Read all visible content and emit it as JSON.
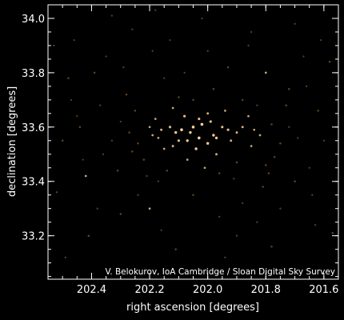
{
  "chart_data": {
    "type": "scatter",
    "title": "",
    "xlabel": "right ascension [degrees]",
    "ylabel": "declination [degrees]",
    "xlim": [
      202.55,
      201.55
    ],
    "ylim": [
      33.04,
      34.05
    ],
    "x_inverted": true,
    "xticks": [
      202.4,
      202.2,
      202.0,
      201.8,
      201.6
    ],
    "xtick_labels": [
      "202.4",
      "202.2",
      "202.0",
      "201.8",
      "201.6"
    ],
    "yticks": [
      33.2,
      33.4,
      33.6,
      33.8,
      34.0
    ],
    "ytick_labels": [
      "33.2",
      "33.4",
      "33.6",
      "33.8",
      "34.0"
    ],
    "grid": false,
    "credit": "V. Belokurov, IoA Cambridge / Sloan Digital Sky Survey",
    "colors": {
      "background": "#000000",
      "axes": "#ffffff",
      "stars_bright": "#ffd39a",
      "stars_dim": "#8a5a2a"
    },
    "series": [
      {
        "points": [
          [
            202.06,
            33.58,
            0.9
          ],
          [
            202.02,
            33.61,
            1.0
          ],
          [
            201.98,
            33.57,
            0.9
          ],
          [
            202.1,
            33.55,
            0.8
          ],
          [
            201.95,
            33.6,
            0.8
          ],
          [
            202.04,
            33.52,
            0.9
          ],
          [
            201.92,
            33.55,
            0.7
          ],
          [
            202.13,
            33.6,
            0.8
          ],
          [
            202.0,
            33.65,
            0.7
          ],
          [
            201.88,
            33.6,
            0.7
          ],
          [
            202.15,
            33.52,
            0.6
          ],
          [
            202.08,
            33.64,
            0.8
          ],
          [
            201.97,
            33.5,
            0.7
          ],
          [
            202.11,
            33.58,
            0.9
          ],
          [
            202.03,
            33.56,
            1.0
          ],
          [
            201.99,
            33.62,
            0.8
          ],
          [
            202.17,
            33.56,
            0.6
          ],
          [
            201.85,
            33.53,
            0.6
          ],
          [
            202.2,
            33.6,
            0.6
          ],
          [
            201.82,
            33.57,
            0.6
          ],
          [
            202.24,
            33.54,
            0.5
          ],
          [
            201.78,
            33.61,
            0.5
          ],
          [
            202.07,
            33.48,
            0.6
          ],
          [
            201.94,
            33.66,
            0.6
          ],
          [
            202.12,
            33.67,
            0.6
          ],
          [
            201.9,
            33.47,
            0.5
          ],
          [
            202.18,
            33.63,
            0.6
          ],
          [
            202.01,
            33.45,
            0.6
          ],
          [
            201.86,
            33.64,
            0.6
          ],
          [
            202.27,
            33.58,
            0.5
          ],
          [
            201.75,
            33.54,
            0.5
          ],
          [
            202.22,
            33.48,
            0.5
          ],
          [
            201.8,
            33.46,
            0.5
          ],
          [
            202.05,
            33.7,
            0.5
          ],
          [
            201.96,
            33.43,
            0.5
          ],
          [
            202.3,
            33.62,
            0.4
          ],
          [
            201.72,
            33.6,
            0.4
          ],
          [
            202.14,
            33.44,
            0.5
          ],
          [
            201.88,
            33.7,
            0.5
          ],
          [
            202.09,
            33.59,
            1.0
          ],
          [
            202.0,
            33.54,
            0.9
          ],
          [
            201.93,
            33.59,
            0.8
          ],
          [
            202.16,
            33.59,
            0.7
          ],
          [
            202.05,
            33.6,
            1.0
          ],
          [
            201.97,
            33.56,
            0.9
          ],
          [
            202.12,
            33.53,
            0.7
          ],
          [
            201.9,
            33.58,
            0.7
          ],
          [
            202.19,
            33.57,
            0.6
          ],
          [
            202.03,
            33.63,
            0.8
          ],
          [
            201.84,
            33.59,
            0.6
          ],
          [
            202.07,
            33.55,
            0.9
          ],
          [
            202.26,
            33.51,
            0.5
          ],
          [
            201.77,
            33.49,
            0.5
          ],
          [
            202.33,
            33.55,
            0.4
          ],
          [
            201.69,
            33.56,
            0.4
          ],
          [
            202.1,
            33.71,
            0.5
          ],
          [
            201.91,
            33.41,
            0.4
          ],
          [
            202.21,
            33.42,
            0.4
          ],
          [
            201.83,
            33.68,
            0.4
          ],
          [
            202.36,
            33.5,
            0.4
          ],
          [
            202.42,
            33.42,
            0.6
          ],
          [
            202.48,
            33.78,
            0.5
          ],
          [
            202.39,
            33.8,
            0.5
          ],
          [
            202.45,
            33.64,
            0.4
          ],
          [
            202.5,
            33.55,
            0.5
          ],
          [
            202.38,
            33.3,
            0.4
          ],
          [
            202.35,
            33.86,
            0.4
          ],
          [
            202.28,
            33.72,
            0.5
          ],
          [
            202.24,
            33.35,
            0.4
          ],
          [
            202.3,
            33.28,
            0.5
          ],
          [
            202.19,
            33.88,
            0.4
          ],
          [
            202.15,
            33.78,
            0.4
          ],
          [
            202.16,
            33.22,
            0.4
          ],
          [
            202.08,
            33.8,
            0.4
          ],
          [
            202.05,
            33.35,
            0.5
          ],
          [
            202.0,
            33.88,
            0.4
          ],
          [
            201.96,
            33.27,
            0.4
          ],
          [
            201.93,
            33.82,
            0.5
          ],
          [
            201.88,
            33.32,
            0.4
          ],
          [
            201.86,
            33.9,
            0.4
          ],
          [
            201.81,
            33.38,
            0.5
          ],
          [
            201.8,
            33.8,
            0.6
          ],
          [
            201.75,
            33.3,
            0.4
          ],
          [
            201.72,
            33.74,
            0.5
          ],
          [
            201.7,
            33.4,
            0.5
          ],
          [
            201.67,
            33.86,
            0.4
          ],
          [
            201.65,
            33.45,
            0.4
          ],
          [
            201.62,
            33.66,
            0.5
          ],
          [
            201.6,
            33.55,
            0.4
          ],
          [
            201.58,
            33.84,
            0.5
          ],
          [
            202.52,
            33.36,
            0.4
          ],
          [
            202.46,
            33.92,
            0.4
          ],
          [
            202.41,
            33.2,
            0.5
          ],
          [
            202.33,
            34.01,
            0.4
          ],
          [
            202.26,
            33.96,
            0.4
          ],
          [
            202.18,
            34.03,
            0.4
          ],
          [
            202.11,
            33.15,
            0.5
          ],
          [
            202.02,
            34.0,
            0.4
          ],
          [
            201.94,
            33.12,
            0.4
          ],
          [
            201.85,
            33.95,
            0.4
          ],
          [
            201.78,
            33.16,
            0.5
          ],
          [
            201.7,
            33.98,
            0.4
          ],
          [
            201.63,
            33.24,
            0.4
          ],
          [
            201.57,
            33.21,
            0.5
          ],
          [
            202.49,
            33.12,
            0.4
          ],
          [
            202.44,
            33.6,
            0.5
          ],
          [
            202.2,
            33.3,
            0.6
          ],
          [
            201.83,
            33.25,
            0.4
          ],
          [
            202.31,
            33.44,
            0.5
          ],
          [
            201.73,
            33.68,
            0.5
          ],
          [
            202.29,
            33.82,
            0.4
          ],
          [
            201.64,
            33.35,
            0.4
          ],
          [
            202.13,
            33.92,
            0.4
          ],
          [
            201.9,
            33.2,
            0.4
          ],
          [
            202.37,
            33.68,
            0.4
          ],
          [
            201.66,
            33.75,
            0.4
          ],
          [
            202.25,
            33.66,
            0.5
          ],
          [
            201.79,
            33.43,
            0.5
          ],
          [
            202.17,
            33.4,
            0.4
          ],
          [
            201.98,
            33.74,
            0.5
          ],
          [
            202.47,
            33.7,
            0.4
          ],
          [
            202.43,
            33.48,
            0.4
          ],
          [
            201.61,
            33.92,
            0.4
          ],
          [
            202.53,
            33.9,
            0.4
          ]
        ]
      }
    ]
  }
}
